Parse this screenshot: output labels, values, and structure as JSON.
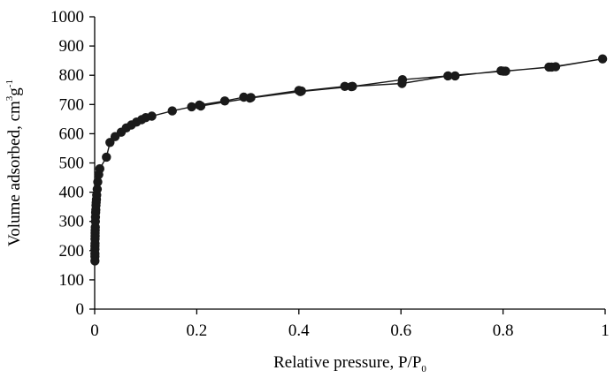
{
  "chart_data": {
    "type": "line",
    "title": "",
    "xlabel": {
      "main": "Relative pressure, P/P",
      "subscript": "0"
    },
    "ylabel": {
      "main": "Volume adsorbed, cm",
      "sup1": "3",
      "mid": "g",
      "sup2": "-1"
    },
    "xlim": [
      0,
      1
    ],
    "ylim": [
      0,
      1000
    ],
    "x_ticks": [
      0,
      0.2,
      0.4,
      0.6,
      0.8,
      1
    ],
    "x_tick_labels": [
      "0",
      "0.2",
      "0.4",
      "0.6",
      "0.8",
      "1"
    ],
    "y_ticks": [
      0,
      100,
      200,
      300,
      400,
      500,
      600,
      700,
      800,
      900,
      1000
    ],
    "y_tick_labels": [
      "0",
      "100",
      "200",
      "300",
      "400",
      "500",
      "600",
      "700",
      "800",
      "900",
      "1000"
    ],
    "grid": false,
    "legend": "none",
    "colors": {
      "line": "#1a1a1a",
      "marker": "#1a1a1a",
      "axis": "#000000"
    },
    "series": [
      {
        "marker": "circle",
        "x": [
          0.0005,
          0.0005,
          0.0005,
          0.0006,
          0.0006,
          0.0007,
          0.0007,
          0.0008,
          0.0009,
          0.001,
          0.0012,
          0.0014,
          0.0016,
          0.0019,
          0.0022,
          0.0026,
          0.003,
          0.0035,
          0.004,
          0.005,
          0.006,
          0.008,
          0.01,
          0.023,
          0.03,
          0.04,
          0.052,
          0.062,
          0.072,
          0.082,
          0.092,
          0.1,
          0.112,
          0.152,
          0.19,
          0.205,
          0.255,
          0.292,
          0.306,
          0.4,
          0.405,
          0.49,
          0.505,
          0.602,
          0.692,
          0.706,
          0.796,
          0.805,
          0.89,
          0.903,
          0.995,
          0.895,
          0.801,
          0.603,
          0.503,
          0.403,
          0.304,
          0.208
        ],
        "y": [
          165,
          180,
          190,
          205,
          215,
          225,
          240,
          250,
          260,
          270,
          280,
          300,
          315,
          330,
          340,
          355,
          365,
          375,
          390,
          410,
          435,
          460,
          480,
          520,
          570,
          590,
          605,
          620,
          630,
          640,
          648,
          655,
          660,
          678,
          692,
          698,
          712,
          725,
          724,
          748,
          746,
          762,
          762,
          772,
          798,
          798,
          815,
          814,
          828,
          829,
          856,
          828,
          814,
          785,
          761,
          744,
          722,
          695
        ]
      }
    ]
  }
}
